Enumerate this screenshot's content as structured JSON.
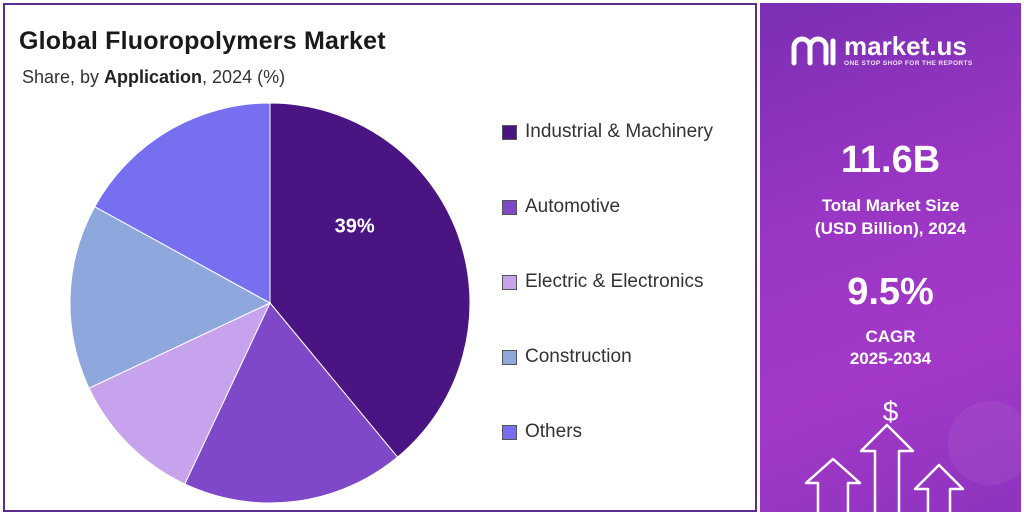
{
  "title": "Global Fluoropolymers  Market",
  "subtitle_pre": "Share, by ",
  "subtitle_em": "Application",
  "subtitle_post": ", 2024 (%)",
  "chart_data": {
    "type": "pie",
    "categories": [
      "Industrial & Machinery",
      "Automotive",
      "Electric & Electronics",
      "Construction",
      "Others"
    ],
    "values": [
      39,
      18,
      11,
      15,
      17
    ],
    "colors": [
      "#4a1583",
      "#7f48c9",
      "#c7a3ee",
      "#8ea7dc",
      "#7670f0"
    ],
    "data_labels": [
      "39%",
      "",
      "",
      "",
      ""
    ],
    "legend_position": "right"
  },
  "panel": {
    "brand_name": "market.us",
    "brand_tagline": "ONE STOP SHOP FOR THE REPORTS",
    "market_size_value": "11.6B",
    "market_size_label_1": "Total Market Size",
    "market_size_label_2": "(USD Billion), 2024",
    "cagr_value": "9.5%",
    "cagr_label_1": "CAGR",
    "cagr_label_2": "2025-2034",
    "dollar_symbol": "$",
    "icons": [
      "brand-logo-icon",
      "dollar-icon",
      "up-arrow-icon"
    ]
  }
}
